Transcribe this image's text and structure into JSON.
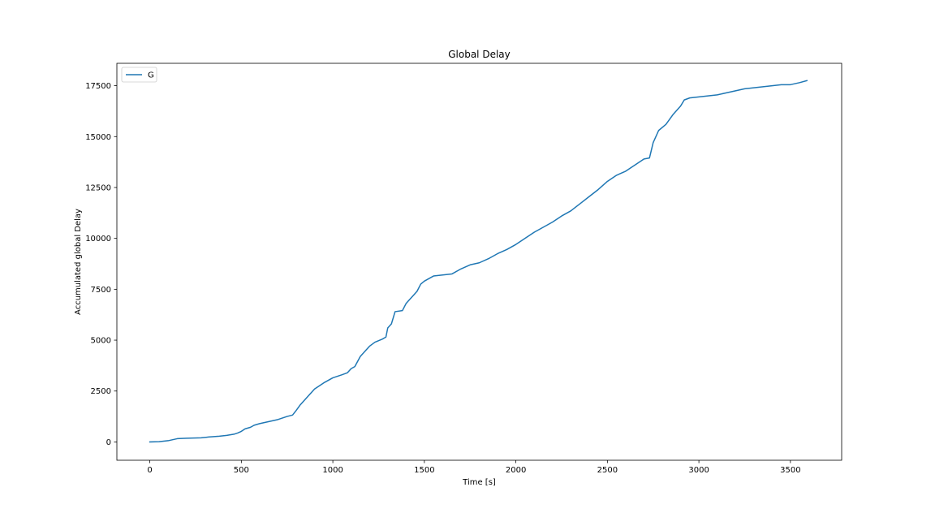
{
  "chart_data": {
    "type": "line",
    "title": "Global Delay",
    "xlabel": "Time [s]",
    "ylabel": "Accumulated global Delay",
    "xlim": [
      -180,
      3780
    ],
    "ylim": [
      -900,
      18600
    ],
    "xticks": [
      0,
      500,
      1000,
      1500,
      2000,
      2500,
      3000,
      3500
    ],
    "yticks": [
      0,
      2500,
      5000,
      7500,
      10000,
      12500,
      15000,
      17500
    ],
    "grid": false,
    "legend_position": "top-left",
    "series": [
      {
        "name": "G",
        "color": "#1f77b4",
        "points": [
          [
            0,
            0
          ],
          [
            50,
            10
          ],
          [
            100,
            60
          ],
          [
            130,
            120
          ],
          [
            150,
            160
          ],
          [
            200,
            180
          ],
          [
            280,
            200
          ],
          [
            320,
            240
          ],
          [
            380,
            280
          ],
          [
            420,
            320
          ],
          [
            460,
            380
          ],
          [
            480,
            440
          ],
          [
            500,
            520
          ],
          [
            520,
            640
          ],
          [
            550,
            720
          ],
          [
            570,
            820
          ],
          [
            600,
            900
          ],
          [
            650,
            1000
          ],
          [
            700,
            1100
          ],
          [
            750,
            1250
          ],
          [
            780,
            1320
          ],
          [
            800,
            1550
          ],
          [
            820,
            1800
          ],
          [
            850,
            2100
          ],
          [
            880,
            2400
          ],
          [
            900,
            2600
          ],
          [
            950,
            2900
          ],
          [
            1000,
            3150
          ],
          [
            1050,
            3300
          ],
          [
            1080,
            3400
          ],
          [
            1100,
            3600
          ],
          [
            1120,
            3700
          ],
          [
            1150,
            4200
          ],
          [
            1180,
            4500
          ],
          [
            1200,
            4700
          ],
          [
            1230,
            4900
          ],
          [
            1270,
            5050
          ],
          [
            1290,
            5150
          ],
          [
            1300,
            5600
          ],
          [
            1320,
            5800
          ],
          [
            1340,
            6400
          ],
          [
            1380,
            6450
          ],
          [
            1400,
            6800
          ],
          [
            1430,
            7100
          ],
          [
            1460,
            7400
          ],
          [
            1480,
            7750
          ],
          [
            1500,
            7900
          ],
          [
            1550,
            8150
          ],
          [
            1600,
            8200
          ],
          [
            1650,
            8250
          ],
          [
            1700,
            8500
          ],
          [
            1750,
            8700
          ],
          [
            1800,
            8800
          ],
          [
            1850,
            9000
          ],
          [
            1900,
            9250
          ],
          [
            1950,
            9450
          ],
          [
            2000,
            9700
          ],
          [
            2050,
            10000
          ],
          [
            2100,
            10300
          ],
          [
            2150,
            10550
          ],
          [
            2200,
            10800
          ],
          [
            2250,
            11100
          ],
          [
            2300,
            11350
          ],
          [
            2350,
            11700
          ],
          [
            2400,
            12050
          ],
          [
            2450,
            12400
          ],
          [
            2500,
            12800
          ],
          [
            2550,
            13100
          ],
          [
            2600,
            13300
          ],
          [
            2650,
            13600
          ],
          [
            2700,
            13900
          ],
          [
            2730,
            13950
          ],
          [
            2750,
            14700
          ],
          [
            2780,
            15300
          ],
          [
            2820,
            15600
          ],
          [
            2860,
            16100
          ],
          [
            2900,
            16500
          ],
          [
            2920,
            16800
          ],
          [
            2950,
            16900
          ],
          [
            3000,
            16950
          ],
          [
            3050,
            17000
          ],
          [
            3100,
            17050
          ],
          [
            3150,
            17150
          ],
          [
            3200,
            17250
          ],
          [
            3250,
            17350
          ],
          [
            3300,
            17400
          ],
          [
            3350,
            17450
          ],
          [
            3400,
            17500
          ],
          [
            3450,
            17550
          ],
          [
            3500,
            17550
          ],
          [
            3550,
            17650
          ],
          [
            3590,
            17750
          ]
        ]
      }
    ]
  }
}
